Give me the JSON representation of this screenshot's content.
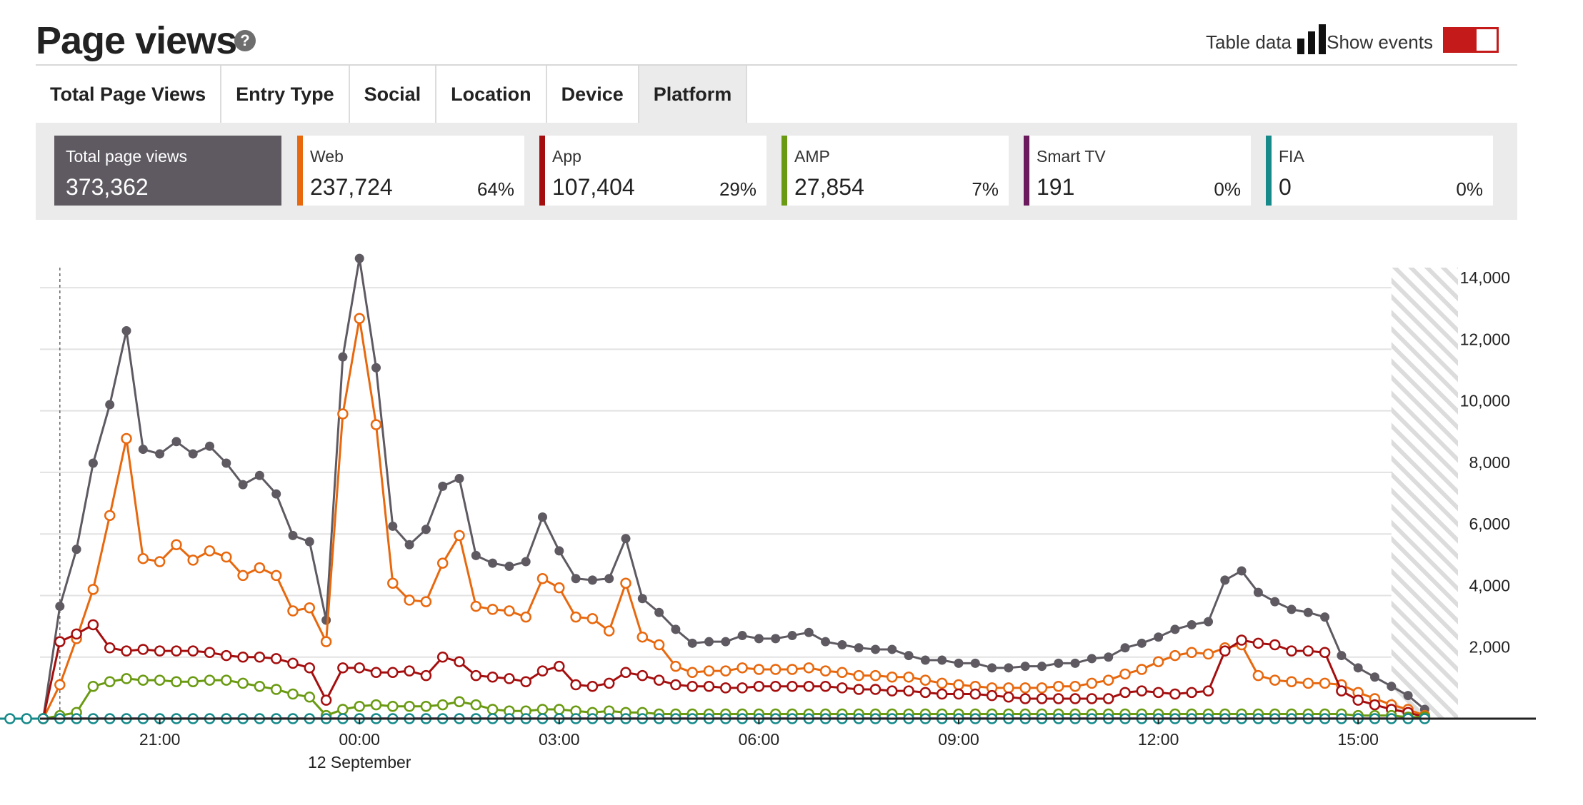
{
  "header": {
    "title": "Page views",
    "help_icon": "?",
    "table_data_label": "Table data",
    "show_events_label": "Show events",
    "accent_color": "#c41a1a"
  },
  "tabs": [
    {
      "label": "Total Page Views",
      "active": false
    },
    {
      "label": "Entry Type",
      "active": false
    },
    {
      "label": "Social",
      "active": false
    },
    {
      "label": "Location",
      "active": false
    },
    {
      "label": "Device",
      "active": false
    },
    {
      "label": "Platform",
      "active": true
    }
  ],
  "summary": {
    "total": {
      "label": "Total page views",
      "value": "373,362"
    },
    "platforms": [
      {
        "label": "Web",
        "value": "237,724",
        "pct": "64%",
        "color": "#e8680e"
      },
      {
        "label": "App",
        "value": "107,404",
        "pct": "29%",
        "color": "#a50e0e"
      },
      {
        "label": "AMP",
        "value": "27,854",
        "pct": "7%",
        "color": "#6a9a12"
      },
      {
        "label": "Smart TV",
        "value": "191",
        "pct": "0%",
        "color": "#6c1a5e"
      },
      {
        "label": "FIA",
        "value": "0",
        "pct": "0%",
        "color": "#168a8a"
      }
    ]
  },
  "chart_data": {
    "type": "line",
    "x_start_hours": 19.25,
    "x_step_hours": 0.25,
    "x_tick_labels": [
      "21:00",
      "00:00",
      "03:00",
      "06:00",
      "09:00",
      "12:00",
      "15:00"
    ],
    "x_tick_hours": [
      21,
      24,
      27,
      30,
      33,
      36,
      39
    ],
    "x_sublabel": "12 September",
    "y_ticks": [
      "2,000",
      "4,000",
      "6,000",
      "8,000",
      "10,000",
      "12,000",
      "14,000"
    ],
    "ylim": [
      0,
      15000
    ],
    "grid": true,
    "series": [
      {
        "name": "Total page views",
        "color": "#5f5a62",
        "marker": "filled",
        "values": [
          0,
          3650,
          5500,
          8300,
          10200,
          12600,
          8750,
          8600,
          9000,
          8600,
          8850,
          8300,
          7600,
          7900,
          7300,
          5950,
          5750,
          3200,
          11750,
          14950,
          11400,
          6250,
          5650,
          6150,
          7550,
          7800,
          5300,
          5050,
          4950,
          5100,
          6550,
          5450,
          4550,
          4500,
          4550,
          5850,
          3900,
          3450,
          2900,
          2450,
          2500,
          2500,
          2700,
          2600,
          2600,
          2700,
          2800,
          2500,
          2400,
          2300,
          2250,
          2250,
          2050,
          1900,
          1900,
          1800,
          1800,
          1650,
          1650,
          1700,
          1700,
          1800,
          1800,
          1950,
          2000,
          2300,
          2450,
          2650,
          2900,
          3050,
          3150,
          4500,
          4800,
          4100,
          3800,
          3550,
          3450,
          3300,
          2050,
          1650,
          1350,
          1050,
          750,
          300
        ]
      },
      {
        "name": "Web",
        "color": "#e8680e",
        "marker": "open",
        "values": [
          0,
          1100,
          2600,
          4200,
          6600,
          9100,
          5200,
          5100,
          5650,
          5150,
          5450,
          5250,
          4650,
          4900,
          4650,
          3500,
          3600,
          2500,
          9900,
          13000,
          9550,
          4400,
          3850,
          3800,
          5050,
          5950,
          3650,
          3550,
          3500,
          3300,
          4550,
          4250,
          3300,
          3250,
          2850,
          4400,
          2650,
          2400,
          1700,
          1500,
          1550,
          1550,
          1650,
          1600,
          1600,
          1600,
          1650,
          1550,
          1500,
          1400,
          1400,
          1350,
          1350,
          1250,
          1150,
          1100,
          1050,
          1000,
          1000,
          1000,
          1000,
          1050,
          1050,
          1150,
          1250,
          1450,
          1600,
          1850,
          2050,
          2150,
          2100,
          2300,
          2400,
          1400,
          1250,
          1200,
          1150,
          1150,
          1100,
          850,
          650,
          450,
          300,
          100
        ]
      },
      {
        "name": "App",
        "color": "#a50e0e",
        "marker": "open",
        "values": [
          0,
          2500,
          2750,
          3050,
          2300,
          2200,
          2250,
          2200,
          2200,
          2200,
          2150,
          2050,
          2000,
          2000,
          1950,
          1800,
          1650,
          600,
          1650,
          1650,
          1500,
          1500,
          1550,
          1400,
          2000,
          1850,
          1400,
          1350,
          1300,
          1200,
          1550,
          1700,
          1100,
          1050,
          1150,
          1500,
          1400,
          1250,
          1100,
          1050,
          1050,
          1000,
          1000,
          1050,
          1050,
          1050,
          1050,
          1050,
          1000,
          950,
          950,
          900,
          900,
          850,
          800,
          800,
          800,
          750,
          700,
          650,
          650,
          650,
          650,
          650,
          650,
          850,
          900,
          850,
          800,
          850,
          900,
          2200,
          2550,
          2450,
          2400,
          2200,
          2200,
          2150,
          900,
          600,
          450,
          300,
          200,
          50
        ]
      },
      {
        "name": "AMP",
        "color": "#6a9a12",
        "marker": "open",
        "values": [
          0,
          100,
          200,
          1050,
          1200,
          1300,
          1250,
          1250,
          1200,
          1200,
          1250,
          1250,
          1150,
          1050,
          950,
          800,
          700,
          100,
          300,
          400,
          450,
          400,
          400,
          400,
          450,
          550,
          450,
          300,
          250,
          250,
          300,
          300,
          250,
          200,
          250,
          200,
          200,
          150,
          150,
          150,
          150,
          150,
          150,
          150,
          150,
          150,
          150,
          150,
          150,
          150,
          150,
          150,
          150,
          150,
          150,
          150,
          150,
          150,
          150,
          150,
          150,
          150,
          150,
          150,
          150,
          150,
          150,
          150,
          150,
          150,
          150,
          150,
          150,
          150,
          150,
          150,
          150,
          150,
          150,
          100,
          100,
          100,
          50,
          50
        ]
      },
      {
        "name": "Smart TV",
        "color": "#6c1a5e",
        "marker": "none",
        "values": [
          0,
          5,
          5,
          5,
          5,
          5,
          5,
          5,
          5,
          5,
          5,
          5,
          5,
          5,
          5,
          5,
          5,
          5,
          5,
          5,
          5,
          5,
          5,
          5,
          5,
          5,
          5,
          5,
          5,
          5,
          5,
          5,
          5,
          5,
          5,
          5,
          5,
          5,
          5,
          5,
          5,
          5,
          5,
          5,
          5,
          5,
          5,
          5,
          5,
          5,
          5,
          5,
          5,
          5,
          5,
          5,
          5,
          5,
          5,
          5,
          5,
          5,
          5,
          5,
          5,
          5,
          5,
          5,
          5,
          5,
          5,
          5,
          5,
          5,
          5,
          5,
          5,
          5,
          5,
          5,
          5,
          5,
          5,
          5
        ]
      },
      {
        "name": "FIA",
        "color": "#168a8a",
        "marker": "open",
        "values": [
          0,
          0,
          0,
          0,
          0,
          0,
          0,
          0,
          0,
          0,
          0,
          0,
          0,
          0,
          0,
          0,
          0,
          0,
          0,
          0,
          0,
          0,
          0,
          0,
          0,
          0,
          0,
          0,
          0,
          0,
          0,
          0,
          0,
          0,
          0,
          0,
          0,
          0,
          0,
          0,
          0,
          0,
          0,
          0,
          0,
          0,
          0,
          0,
          0,
          0,
          0,
          0,
          0,
          0,
          0,
          0,
          0,
          0,
          0,
          0,
          0,
          0,
          0,
          0,
          0,
          0,
          0,
          0,
          0,
          0,
          0,
          0,
          0,
          0,
          0,
          0,
          0,
          0,
          0,
          0,
          0,
          0,
          0,
          0
        ]
      }
    ],
    "fia_leading_points": 3,
    "event_marker_hours": 19.5,
    "incomplete_region_hours": [
      39.5,
      40.5
    ]
  }
}
